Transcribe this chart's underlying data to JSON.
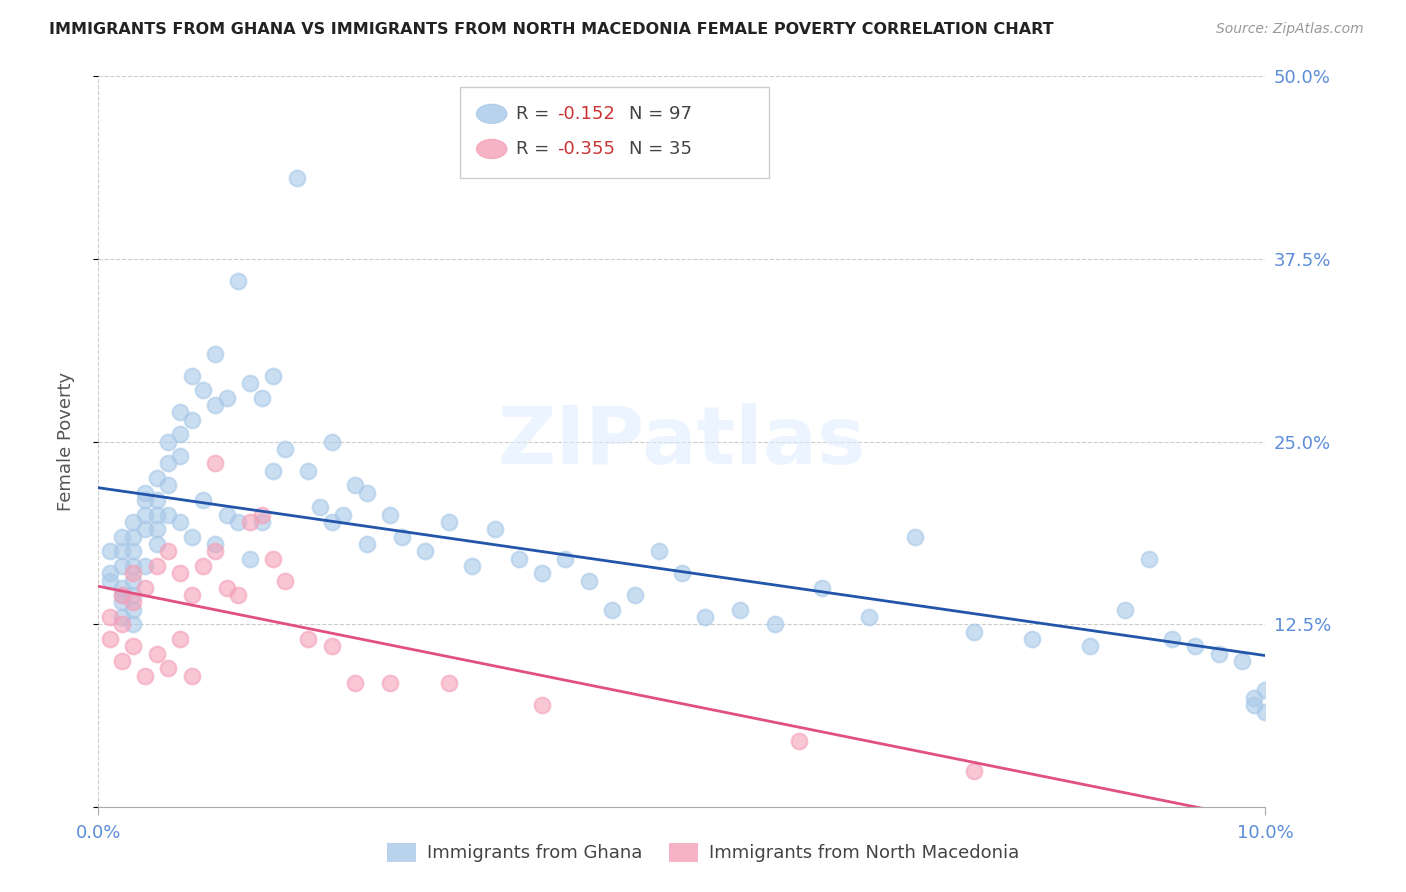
{
  "title": "IMMIGRANTS FROM GHANA VS IMMIGRANTS FROM NORTH MACEDONIA FEMALE POVERTY CORRELATION CHART",
  "source": "Source: ZipAtlas.com",
  "ylabel": "Female Poverty",
  "x_min": 0.0,
  "x_max": 0.1,
  "y_min": 0.0,
  "y_max": 0.5,
  "x_ticks": [
    0.0,
    0.1
  ],
  "x_tick_labels": [
    "0.0%",
    "10.0%"
  ],
  "y_ticks": [
    0.0,
    0.125,
    0.25,
    0.375,
    0.5
  ],
  "y_tick_labels": [
    "",
    "12.5%",
    "25.0%",
    "37.5%",
    "50.0%"
  ],
  "ghana_color": "#a8c8e8",
  "macedonia_color": "#f4a0b8",
  "ghana_line_color": "#2255aa",
  "macedonia_line_color": "#e05080",
  "legend_R_ghana": "-0.152",
  "legend_N_ghana": "97",
  "legend_R_macedonia": "-0.355",
  "legend_N_macedonia": "35",
  "watermark": "ZIPatlas",
  "ghana_x": [
    0.001,
    0.001,
    0.001,
    0.002,
    0.002,
    0.002,
    0.002,
    0.002,
    0.002,
    0.002,
    0.003,
    0.003,
    0.003,
    0.003,
    0.003,
    0.003,
    0.003,
    0.003,
    0.004,
    0.004,
    0.004,
    0.004,
    0.004,
    0.005,
    0.005,
    0.005,
    0.005,
    0.005,
    0.006,
    0.006,
    0.006,
    0.006,
    0.007,
    0.007,
    0.007,
    0.007,
    0.008,
    0.008,
    0.008,
    0.009,
    0.009,
    0.01,
    0.01,
    0.01,
    0.011,
    0.011,
    0.012,
    0.012,
    0.013,
    0.013,
    0.014,
    0.014,
    0.015,
    0.015,
    0.016,
    0.017,
    0.018,
    0.019,
    0.02,
    0.02,
    0.021,
    0.022,
    0.023,
    0.023,
    0.025,
    0.026,
    0.028,
    0.03,
    0.032,
    0.034,
    0.036,
    0.038,
    0.04,
    0.042,
    0.044,
    0.046,
    0.048,
    0.05,
    0.052,
    0.055,
    0.058,
    0.062,
    0.066,
    0.07,
    0.075,
    0.08,
    0.085,
    0.088,
    0.09,
    0.092,
    0.094,
    0.096,
    0.098,
    0.099,
    0.099,
    0.1,
    0.1
  ],
  "ghana_y": [
    0.175,
    0.16,
    0.155,
    0.185,
    0.175,
    0.165,
    0.15,
    0.145,
    0.14,
    0.13,
    0.195,
    0.185,
    0.175,
    0.165,
    0.155,
    0.145,
    0.135,
    0.125,
    0.215,
    0.21,
    0.2,
    0.19,
    0.165,
    0.225,
    0.21,
    0.2,
    0.19,
    0.18,
    0.25,
    0.235,
    0.22,
    0.2,
    0.27,
    0.255,
    0.24,
    0.195,
    0.295,
    0.265,
    0.185,
    0.285,
    0.21,
    0.31,
    0.275,
    0.18,
    0.28,
    0.2,
    0.36,
    0.195,
    0.29,
    0.17,
    0.28,
    0.195,
    0.295,
    0.23,
    0.245,
    0.43,
    0.23,
    0.205,
    0.25,
    0.195,
    0.2,
    0.22,
    0.215,
    0.18,
    0.2,
    0.185,
    0.175,
    0.195,
    0.165,
    0.19,
    0.17,
    0.16,
    0.17,
    0.155,
    0.135,
    0.145,
    0.175,
    0.16,
    0.13,
    0.135,
    0.125,
    0.15,
    0.13,
    0.185,
    0.12,
    0.115,
    0.11,
    0.135,
    0.17,
    0.115,
    0.11,
    0.105,
    0.1,
    0.075,
    0.07,
    0.065,
    0.08
  ],
  "macedonia_x": [
    0.001,
    0.001,
    0.002,
    0.002,
    0.002,
    0.003,
    0.003,
    0.003,
    0.004,
    0.004,
    0.005,
    0.005,
    0.006,
    0.006,
    0.007,
    0.007,
    0.008,
    0.008,
    0.009,
    0.01,
    0.01,
    0.011,
    0.012,
    0.013,
    0.014,
    0.015,
    0.016,
    0.018,
    0.02,
    0.022,
    0.025,
    0.03,
    0.038,
    0.06,
    0.075
  ],
  "macedonia_y": [
    0.13,
    0.115,
    0.145,
    0.125,
    0.1,
    0.16,
    0.14,
    0.11,
    0.15,
    0.09,
    0.165,
    0.105,
    0.175,
    0.095,
    0.16,
    0.115,
    0.145,
    0.09,
    0.165,
    0.175,
    0.235,
    0.15,
    0.145,
    0.195,
    0.2,
    0.17,
    0.155,
    0.115,
    0.11,
    0.085,
    0.085,
    0.085,
    0.07,
    0.045,
    0.025
  ]
}
